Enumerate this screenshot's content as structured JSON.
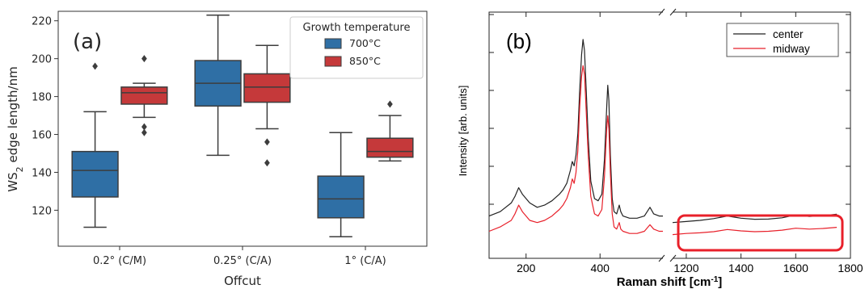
{
  "chart_data": [
    {
      "type": "box",
      "panel_label": "(a)",
      "xlabel": "Offcut",
      "ylabel": "WS2 edge length/nm",
      "ylabel_base": "WS",
      "ylabel_sub": "2",
      "ylabel_rest": " edge length/nm",
      "ylim": [
        101,
        225
      ],
      "yticks": [
        120,
        140,
        160,
        180,
        200,
        220
      ],
      "categories": [
        "0.2° (C/M)",
        "0.25° (C/A)",
        "1° (C/A)"
      ],
      "legend": {
        "title": "Growth temperature",
        "placement": "top-right"
      },
      "series": [
        {
          "name": "700°C",
          "color": "#2f6fa5",
          "boxes": [
            {
              "whislo": 111,
              "q1": 127,
              "med": 141,
              "q3": 151,
              "whishi": 172,
              "fliers": [
                196
              ]
            },
            {
              "whislo": 149,
              "q1": 175,
              "med": 187,
              "q3": 199,
              "whishi": 223,
              "fliers": []
            },
            {
              "whislo": 106,
              "q1": 116,
              "med": 126,
              "q3": 138,
              "whishi": 161,
              "fliers": []
            }
          ]
        },
        {
          "name": "850°C",
          "color": "#c5393a",
          "boxes": [
            {
              "whislo": 169,
              "q1": 176,
              "med": 182,
              "q3": 185,
              "whishi": 187,
              "fliers": [
                200,
                164,
                161
              ]
            },
            {
              "whislo": 163,
              "q1": 177,
              "med": 185,
              "q3": 192,
              "whishi": 207,
              "fliers": [
                156,
                145
              ]
            },
            {
              "whislo": 146,
              "q1": 148,
              "med": 151,
              "q3": 158,
              "whishi": 170,
              "fliers": [
                176
              ]
            }
          ]
        }
      ]
    },
    {
      "type": "line",
      "panel_label": "(b)",
      "xlabel": "Raman shift [cm⁻¹]",
      "ylabel": "Intensity [arb. units]",
      "xticks": [
        200,
        400,
        1200,
        1400,
        1600,
        1800
      ],
      "axis_break": true,
      "xlim_segments": [
        [
          100,
          570
        ],
        [
          1150,
          1800
        ]
      ],
      "ylim": [
        0,
        100
      ],
      "highlight": {
        "color": "#e8202a",
        "x_range": [
          1160,
          1750
        ]
      },
      "legend": {
        "placement": "top-right"
      },
      "series": [
        {
          "name": "center",
          "color": "#222222",
          "segments": [
            [
              [
                100,
                12
              ],
              [
                130,
                14
              ],
              [
                160,
                18
              ],
              [
                170,
                21
              ],
              [
                180,
                25
              ],
              [
                190,
                22
              ],
              [
                210,
                18
              ],
              [
                230,
                16
              ],
              [
                250,
                17
              ],
              [
                270,
                19
              ],
              [
                290,
                22
              ],
              [
                300,
                24
              ],
              [
                310,
                27
              ],
              [
                320,
                33
              ],
              [
                325,
                37
              ],
              [
                330,
                35
              ],
              [
                335,
                40
              ],
              [
                340,
                50
              ],
              [
                345,
                70
              ],
              [
                350,
                86
              ],
              [
                354,
                93
              ],
              [
                358,
                88
              ],
              [
                362,
                72
              ],
              [
                368,
                48
              ],
              [
                375,
                28
              ],
              [
                385,
                20
              ],
              [
                395,
                19
              ],
              [
                405,
                22
              ],
              [
                412,
                38
              ],
              [
                418,
                62
              ],
              [
                421,
                72
              ],
              [
                424,
                65
              ],
              [
                428,
                40
              ],
              [
                433,
                20
              ],
              [
                438,
                14
              ],
              [
                445,
                13
              ],
              [
                452,
                17
              ],
              [
                456,
                14
              ],
              [
                462,
                12
              ],
              [
                480,
                11
              ],
              [
                500,
                11
              ],
              [
                520,
                12
              ],
              [
                535,
                16
              ],
              [
                545,
                13
              ],
              [
                560,
                12
              ],
              [
                570,
                12
              ]
            ],
            [
              [
                1150,
                9
              ],
              [
                1200,
                9.5
              ],
              [
                1250,
                10
              ],
              [
                1300,
                10.8
              ],
              [
                1350,
                12
              ],
              [
                1400,
                11
              ],
              [
                1450,
                10.5
              ],
              [
                1500,
                10.6
              ],
              [
                1550,
                11.2
              ],
              [
                1600,
                12.5
              ],
              [
                1650,
                11.8
              ],
              [
                1700,
                12.2
              ],
              [
                1750,
                12.8
              ]
            ]
          ]
        },
        {
          "name": "midway",
          "color": "#e8202a",
          "segments": [
            [
              [
                100,
                5
              ],
              [
                130,
                7
              ],
              [
                160,
                10
              ],
              [
                170,
                13
              ],
              [
                180,
                17
              ],
              [
                190,
                14
              ],
              [
                210,
                10
              ],
              [
                230,
                9
              ],
              [
                250,
                10
              ],
              [
                270,
                12
              ],
              [
                290,
                15
              ],
              [
                300,
                17
              ],
              [
                310,
                20
              ],
              [
                320,
                25
              ],
              [
                325,
                29
              ],
              [
                330,
                27
              ],
              [
                335,
                32
              ],
              [
                340,
                42
              ],
              [
                345,
                62
              ],
              [
                350,
                76
              ],
              [
                354,
                81
              ],
              [
                358,
                77
              ],
              [
                362,
                62
              ],
              [
                368,
                40
              ],
              [
                375,
                21
              ],
              [
                385,
                13
              ],
              [
                395,
                12
              ],
              [
                405,
                15
              ],
              [
                412,
                30
              ],
              [
                418,
                52
              ],
              [
                421,
                58
              ],
              [
                424,
                52
              ],
              [
                428,
                32
              ],
              [
                433,
                13
              ],
              [
                438,
                7
              ],
              [
                445,
                6
              ],
              [
                452,
                9
              ],
              [
                456,
                6
              ],
              [
                462,
                5
              ],
              [
                480,
                4
              ],
              [
                500,
                4
              ],
              [
                520,
                5
              ],
              [
                535,
                8
              ],
              [
                545,
                6
              ],
              [
                560,
                5
              ],
              [
                570,
                5
              ]
            ],
            [
              [
                1150,
                3.5
              ],
              [
                1200,
                4
              ],
              [
                1250,
                4.3
              ],
              [
                1300,
                4.8
              ],
              [
                1350,
                5.8
              ],
              [
                1400,
                5.2
              ],
              [
                1450,
                4.8
              ],
              [
                1500,
                5
              ],
              [
                1550,
                5.5
              ],
              [
                1600,
                6.4
              ],
              [
                1650,
                6
              ],
              [
                1700,
                6.3
              ],
              [
                1750,
                6.8
              ]
            ]
          ]
        }
      ]
    }
  ]
}
